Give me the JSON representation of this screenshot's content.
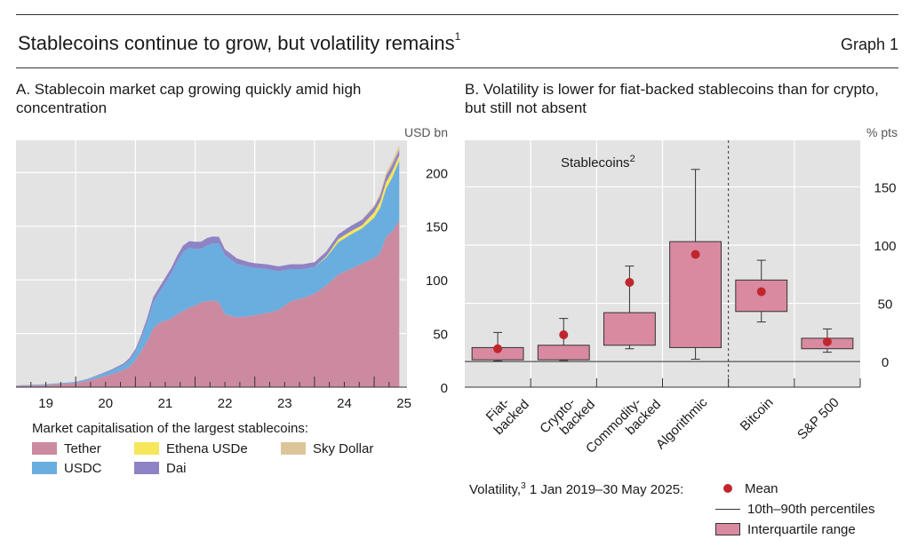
{
  "header": {
    "title": "Stablecoins continue to grow, but volatility remains",
    "title_note": "1",
    "graph_label": "Graph 1"
  },
  "panel_a": {
    "title": "A. Stablecoin market cap growing quickly amid high concentration",
    "unit": "USD bn",
    "legend_title": "Market capitalisation of the largest stablecoins:"
  },
  "panel_b": {
    "title": "B. Volatility is lower for fiat-backed stablecoins than for crypto, but still not absent",
    "unit": "% pts",
    "group_label": "Stablecoins",
    "group_note": "2",
    "legend_title": "Volatility,",
    "legend_title_note": "3",
    "legend_period": "1 Jan 2019–30 May 2025:",
    "legend_items": [
      "Mean",
      "10th–90th percentiles",
      "Interquartile range"
    ]
  },
  "colors": {
    "tether": "#cc8aa0",
    "usdc": "#6aaedf",
    "ethena": "#f5e65a",
    "dai": "#8e83c4",
    "sky": "#ddc59a",
    "box_fill": "#d98aa0",
    "mean": "#c0272d",
    "plot_bg": "#e3e3e3"
  },
  "chart_data": [
    {
      "type": "area",
      "stacked": true,
      "title": "A. Stablecoin market cap growing quickly amid high concentration",
      "ylabel": "USD bn",
      "ylim": [
        0,
        230
      ],
      "yticks": [
        0,
        50,
        100,
        150,
        200
      ],
      "xlim": [
        2019.0,
        2025.55
      ],
      "xtick_labels": [
        "19",
        "20",
        "21",
        "22",
        "23",
        "24",
        "25"
      ],
      "grid": true,
      "x": [
        2019.0,
        2019.5,
        2020.0,
        2020.2,
        2020.4,
        2020.6,
        2020.8,
        2020.9,
        2021.0,
        2021.1,
        2021.2,
        2021.3,
        2021.4,
        2021.5,
        2021.6,
        2021.7,
        2021.8,
        2021.9,
        2022.0,
        2022.1,
        2022.2,
        2022.3,
        2022.4,
        2022.5,
        2022.7,
        2022.9,
        2023.0,
        2023.2,
        2023.4,
        2023.6,
        2023.8,
        2024.0,
        2024.2,
        2024.4,
        2024.6,
        2024.8,
        2024.9,
        2025.0,
        2025.1,
        2025.2,
        2025.3,
        2025.42
      ],
      "series": [
        {
          "name": "Tether",
          "values": [
            1,
            2,
            4,
            6,
            9,
            12,
            16,
            19,
            25,
            34,
            43,
            55,
            60,
            62,
            64,
            68,
            71,
            74,
            76,
            79,
            80,
            81,
            79,
            68,
            65,
            66,
            67,
            69,
            72,
            80,
            83,
            87,
            95,
            105,
            110,
            115,
            118,
            120,
            125,
            140,
            145,
            155
          ]
        },
        {
          "name": "USDC",
          "values": [
            0.5,
            0.6,
            0.8,
            1.5,
            2.5,
            3.5,
            4.5,
            6,
            8,
            12,
            18,
            24,
            28,
            35,
            42,
            49,
            55,
            56,
            53,
            50,
            52,
            53,
            55,
            55,
            50,
            46,
            44,
            41,
            36,
            30,
            27,
            25,
            26,
            30,
            32,
            33,
            35,
            38,
            42,
            45,
            50,
            56
          ]
        },
        {
          "name": "Ethena USDe",
          "values": [
            0,
            0,
            0,
            0,
            0,
            0,
            0,
            0,
            0,
            0,
            0,
            0,
            0,
            0,
            0,
            0,
            0,
            0,
            0,
            0,
            0,
            0,
            0,
            0,
            0,
            0,
            0,
            0,
            0,
            0,
            0,
            0,
            1,
            3,
            3,
            3,
            4,
            5,
            6,
            6,
            6,
            5
          ]
        },
        {
          "name": "Dai",
          "values": [
            0.1,
            0.2,
            0.2,
            0.3,
            0.5,
            1,
            1.5,
            2,
            2.5,
            3,
            4,
            5,
            5,
            5,
            5,
            5.5,
            6,
            6,
            6.5,
            6.5,
            7,
            6.5,
            6,
            5.5,
            5,
            4.5,
            4.5,
            4.5,
            4.5,
            4.5,
            4.5,
            4.5,
            4.5,
            4.5,
            5,
            5,
            5,
            5,
            5.5,
            6,
            6,
            5
          ]
        },
        {
          "name": "Sky Dollar",
          "values": [
            0,
            0,
            0,
            0,
            0,
            0,
            0,
            0,
            0,
            0,
            0,
            0,
            0,
            0,
            0,
            0,
            0,
            0,
            0,
            0,
            0,
            0,
            0,
            0,
            0,
            0,
            0,
            0,
            0,
            0,
            0,
            0,
            0,
            0,
            0,
            0.5,
            1,
            1.5,
            2,
            3,
            3.5,
            4
          ]
        }
      ]
    },
    {
      "type": "box",
      "title": "B. Volatility is lower for fiat-backed stablecoins than for crypto, but still not absent",
      "ylabel": "% pts",
      "ylim": [
        -22,
        190
      ],
      "yticks": [
        0,
        50,
        100,
        150
      ],
      "grid": true,
      "categories": [
        "Fiat-\nbacked",
        "Crypto-\nbacked",
        "Commodity-\nbacked",
        "Algorithmic",
        "Bitcoin",
        "S&P 500"
      ],
      "p10": [
        0.5,
        1,
        11,
        2,
        34,
        8
      ],
      "q1": [
        1.5,
        1.5,
        14,
        12,
        43,
        11
      ],
      "q3": [
        12,
        14,
        42,
        103,
        70,
        20
      ],
      "p90": [
        25,
        37,
        82,
        165,
        87,
        28
      ],
      "mean": [
        11,
        23,
        68,
        92,
        60,
        17
      ]
    }
  ]
}
